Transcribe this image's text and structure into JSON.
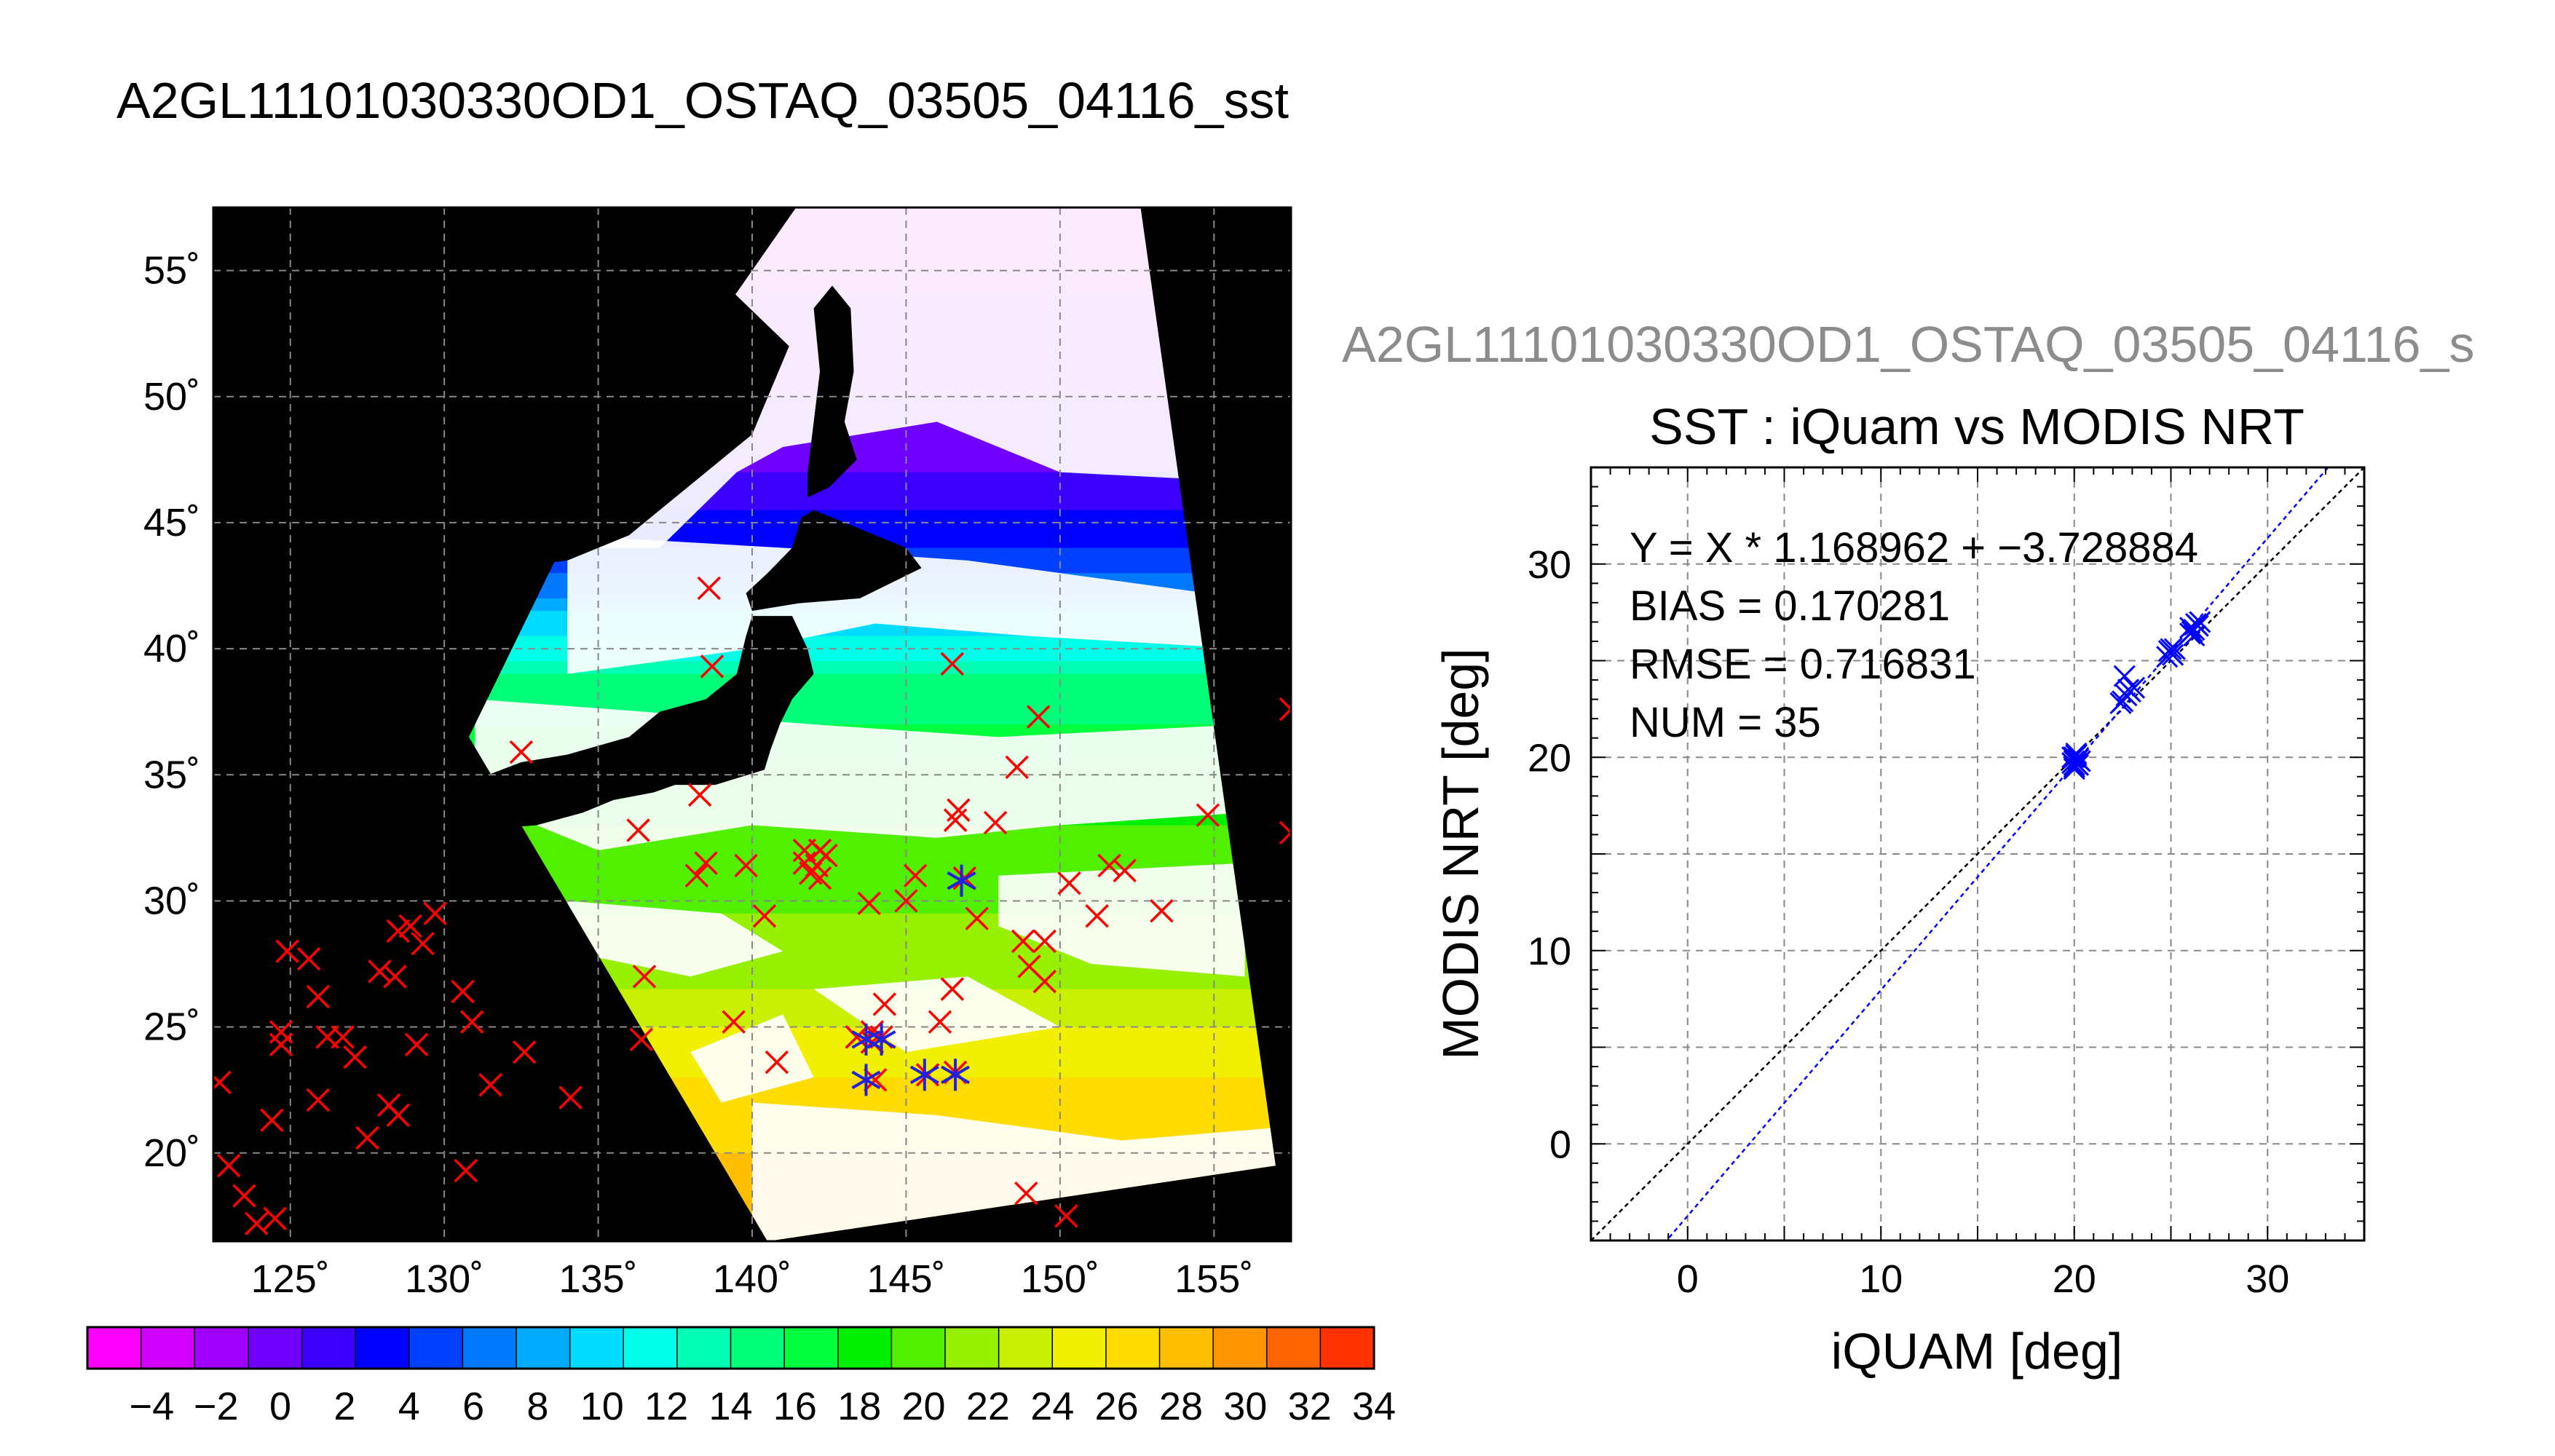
{
  "main_title": "A2GL11101030330OD1_OSTAQ_03505_04116_sst",
  "colors": {
    "match_marker": "#ff0000",
    "modis_marker": "#2222dd",
    "fit_line": "#0000ff",
    "identity_line": "#000000",
    "grid": "#888888",
    "land_nodata": "#000000",
    "cloud": "#ffffff"
  },
  "chart_data": [
    {
      "type": "map",
      "projection": "equirectangular",
      "lon_range": [
        122.5,
        157.5
      ],
      "lat_range": [
        16.5,
        57.5
      ],
      "lon_ticks": [
        125,
        130,
        135,
        140,
        145,
        150,
        155
      ],
      "lat_ticks": [
        20,
        25,
        30,
        35,
        40,
        45,
        50,
        55
      ],
      "lon_tick_labels": [
        "125˚",
        "130˚",
        "135˚",
        "140˚",
        "145˚",
        "150˚",
        "155˚"
      ],
      "lat_tick_labels": [
        "20˚",
        "25˚",
        "30˚",
        "35˚",
        "40˚",
        "45˚",
        "50˚",
        "55˚"
      ],
      "grid": true,
      "swath_corners": [
        [
          134,
          44.5
        ],
        [
          142,
          58.5
        ],
        [
          152.5,
          58.5
        ],
        [
          157,
          19.5
        ],
        [
          140.5,
          16.5
        ],
        [
          130.8,
          36.5
        ]
      ],
      "colorbar": {
        "ticks": [
          -4,
          -2,
          0,
          2,
          4,
          6,
          8,
          10,
          12,
          14,
          16,
          18,
          20,
          22,
          24,
          26,
          28,
          30,
          32,
          34
        ],
        "tick_labels": [
          "−4",
          "−2",
          "0",
          "2",
          "4",
          "6",
          "8",
          "10",
          "12",
          "14",
          "16",
          "18",
          "20",
          "22",
          "24",
          "26",
          "28",
          "30",
          "32",
          "34"
        ],
        "range": [
          -6,
          34
        ],
        "colors": [
          "#ff00ff",
          "#d200ff",
          "#a000ff",
          "#7000ff",
          "#3c00ff",
          "#0000ff",
          "#0040ff",
          "#0078ff",
          "#00aaff",
          "#00dcff",
          "#00ffe6",
          "#00ffb4",
          "#00ff78",
          "#00ff3c",
          "#00f000",
          "#50f000",
          "#96f000",
          "#c8f000",
          "#f0f000",
          "#ffdc00",
          "#ffbe00",
          "#ff9600",
          "#ff6400",
          "#ff3200"
        ]
      },
      "match_points": [
        [
          122.7,
          22.8
        ],
        [
          123.0,
          19.5
        ],
        [
          123.5,
          18.3
        ],
        [
          123.9,
          17.2
        ],
        [
          124.5,
          17.4
        ],
        [
          124.4,
          21.3
        ],
        [
          124.7,
          24.8
        ],
        [
          124.7,
          24.3
        ],
        [
          124.9,
          28.0
        ],
        [
          125.6,
          27.7
        ],
        [
          125.9,
          26.2
        ],
        [
          126.2,
          24.6
        ],
        [
          125.9,
          22.1
        ],
        [
          126.7,
          24.6
        ],
        [
          127.1,
          23.8
        ],
        [
          127.5,
          20.6
        ],
        [
          127.9,
          27.2
        ],
        [
          128.2,
          21.9
        ],
        [
          128.5,
          21.5
        ],
        [
          128.4,
          27.0
        ],
        [
          128.5,
          28.8
        ],
        [
          128.9,
          29.0
        ],
        [
          129.3,
          28.3
        ],
        [
          129.1,
          24.3
        ],
        [
          129.7,
          29.5
        ],
        [
          130.6,
          26.4
        ],
        [
          130.9,
          25.2
        ],
        [
          130.7,
          19.3
        ],
        [
          131.5,
          22.7
        ],
        [
          132.6,
          24.0
        ],
        [
          134.1,
          22.2
        ],
        [
          132.5,
          35.9
        ],
        [
          136.3,
          32.8
        ],
        [
          136.5,
          27.0
        ],
        [
          136.4,
          24.5
        ],
        [
          138.3,
          34.2
        ],
        [
          138.6,
          42.4
        ],
        [
          138.7,
          39.3
        ],
        [
          138.5,
          31.5
        ],
        [
          138.2,
          31.0
        ],
        [
          139.8,
          31.4
        ],
        [
          139.4,
          25.2
        ],
        [
          140.4,
          29.4
        ],
        [
          140.8,
          23.6
        ],
        [
          141.7,
          31.5
        ],
        [
          141.7,
          32.0
        ],
        [
          141.9,
          31.1
        ],
        [
          142.1,
          31.4
        ],
        [
          142.2,
          32.0
        ],
        [
          142.4,
          31.8
        ],
        [
          142.2,
          30.9
        ],
        [
          143.4,
          24.6
        ],
        [
          143.8,
          29.9
        ],
        [
          143.9,
          24.4
        ],
        [
          144.3,
          25.9
        ],
        [
          143.9,
          24.8
        ],
        [
          144.2,
          24.6
        ],
        [
          144.0,
          22.9
        ],
        [
          145.0,
          30.0
        ],
        [
          145.3,
          31.0
        ],
        [
          145.7,
          23.1
        ],
        [
          146.1,
          25.2
        ],
        [
          146.6,
          23.2
        ],
        [
          146.5,
          26.5
        ],
        [
          146.5,
          39.4
        ],
        [
          146.7,
          33.6
        ],
        [
          146.6,
          33.2
        ],
        [
          146.9,
          30.9
        ],
        [
          147.3,
          29.3
        ],
        [
          147.9,
          33.1
        ],
        [
          148.8,
          28.4
        ],
        [
          148.6,
          35.3
        ],
        [
          149.0,
          27.4
        ],
        [
          149.3,
          37.3
        ],
        [
          149.5,
          26.8
        ],
        [
          149.5,
          28.4
        ],
        [
          150.3,
          30.7
        ],
        [
          150.2,
          17.5
        ],
        [
          148.9,
          18.4
        ],
        [
          151.2,
          29.4
        ],
        [
          151.6,
          31.4
        ],
        [
          152.1,
          31.2
        ],
        [
          153.3,
          29.6
        ],
        [
          154.8,
          33.4
        ],
        [
          157.5,
          37.6
        ],
        [
          157.5,
          32.7
        ]
      ],
      "modis_points": [
        [
          143.7,
          24.5
        ],
        [
          144.2,
          24.5
        ],
        [
          143.7,
          22.9
        ],
        [
          145.6,
          23.1
        ],
        [
          146.6,
          23.1
        ],
        [
          146.8,
          30.8
        ]
      ]
    },
    {
      "type": "scatter",
      "title": "SST : iQuam vs MODIS NRT",
      "subtitle": "A2GL11101030330OD1_OSTAQ_03505_04116_s",
      "xlabel": "iQUAM [deg]",
      "ylabel": "MODIS NRT [deg]",
      "xlim": [
        -5,
        35
      ],
      "ylim": [
        -5,
        35
      ],
      "xticks": [
        0,
        10,
        20,
        30
      ],
      "yticks": [
        0,
        10,
        20,
        30
      ],
      "grid": true,
      "stats_lines": [
        "Y = X * 1.168962 + −3.728884",
        "BIAS = 0.170281",
        "RMSE = 0.716831",
        "NUM = 35"
      ],
      "fit": {
        "slope": 1.168962,
        "intercept": -3.728884
      },
      "x": [
        20.0,
        20.1,
        20.2,
        19.9,
        20.0,
        20.3,
        20.1,
        20.0,
        20.2,
        19.9,
        20.1,
        20.0,
        22.5,
        22.7,
        22.9,
        23.1,
        22.6,
        22.4,
        24.8,
        25.0,
        25.2,
        24.9,
        25.1,
        26.0,
        26.2,
        26.4,
        26.1,
        26.3,
        26.0,
        26.5,
        26.2,
        20.0,
        20.2,
        22.8,
        25.0
      ],
      "y": [
        19.5,
        19.7,
        19.9,
        20.0,
        19.6,
        19.8,
        20.1,
        19.4,
        19.9,
        19.7,
        20.2,
        19.8,
        22.9,
        23.2,
        23.4,
        23.6,
        24.2,
        22.8,
        25.2,
        25.4,
        25.6,
        25.5,
        25.3,
        26.4,
        26.6,
        26.8,
        26.5,
        26.9,
        26.7,
        27.0,
        26.3,
        20.0,
        19.6,
        23.5,
        25.6
      ]
    }
  ]
}
